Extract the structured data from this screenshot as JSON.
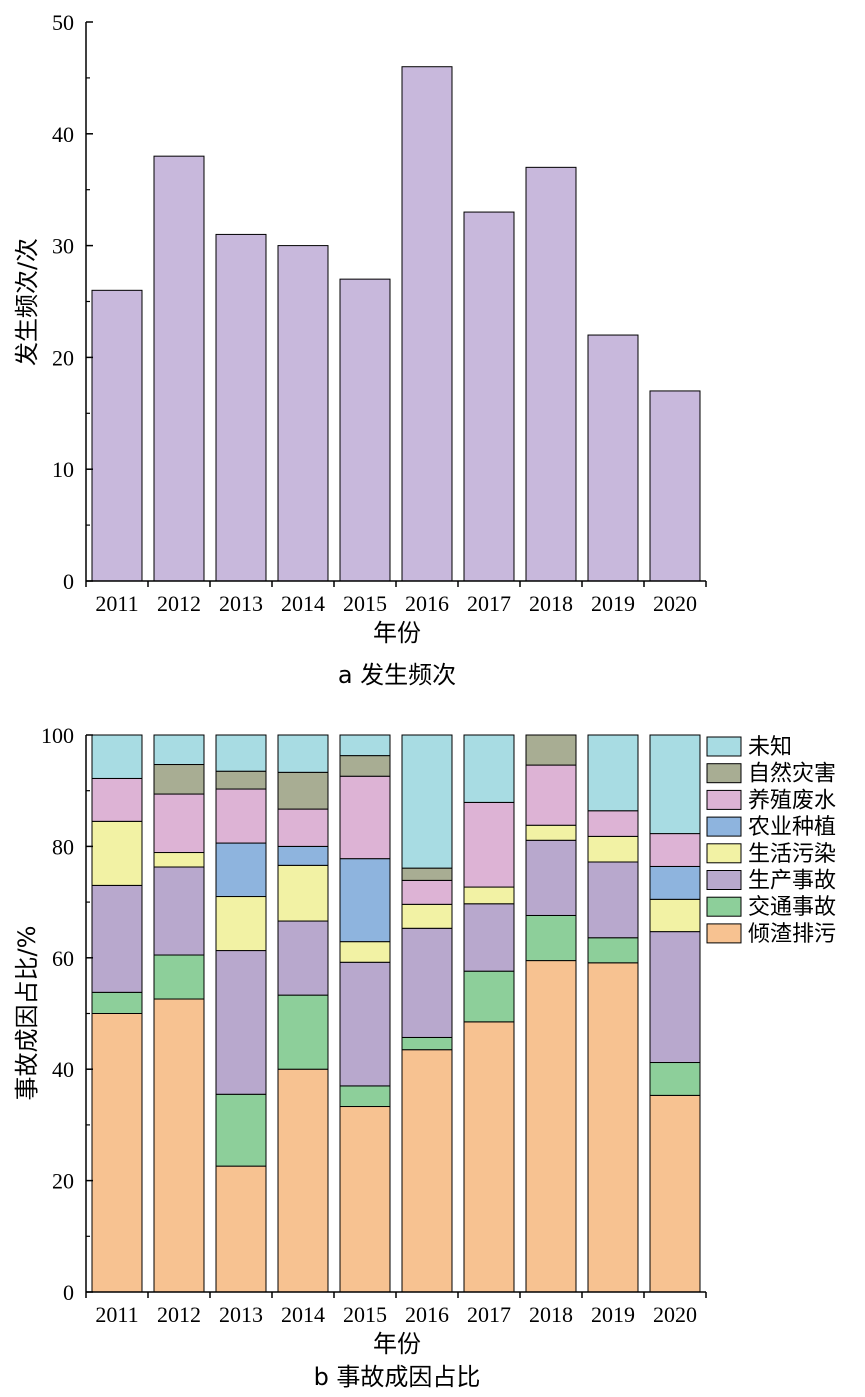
{
  "chart_data": [
    {
      "type": "bar",
      "caption": "a 发生频次",
      "xlabel": "年份",
      "ylabel": "发生频次/次",
      "ylim": [
        0,
        50
      ],
      "yticks": [
        "0",
        "10",
        "20",
        "30",
        "40",
        "50"
      ],
      "categories": [
        "2011",
        "2012",
        "2013",
        "2014",
        "2015",
        "2016",
        "2017",
        "2018",
        "2019",
        "2020"
      ],
      "values": [
        26,
        38,
        31,
        30,
        27,
        46,
        33,
        37,
        22,
        17
      ],
      "color": "#c8b8dc",
      "grid": false
    },
    {
      "type": "bar",
      "stacked": true,
      "caption": "b 事故成因占比",
      "xlabel": "年份",
      "ylabel": "事故成因占比/%",
      "ylim": [
        0,
        100
      ],
      "yticks": [
        "0",
        "20",
        "40",
        "60",
        "80",
        "100"
      ],
      "categories": [
        "2011",
        "2012",
        "2013",
        "2014",
        "2015",
        "2016",
        "2017",
        "2018",
        "2019",
        "2020"
      ],
      "legend_position": "right",
      "grid": false,
      "series": [
        {
          "name": "倾渣排污",
          "color": "#f7c291",
          "values": [
            50.0,
            52.6,
            22.6,
            40.0,
            33.3,
            43.5,
            48.5,
            59.5,
            59.1,
            35.3
          ]
        },
        {
          "name": "交通事故",
          "color": "#8dcf9a",
          "values": [
            3.8,
            7.9,
            12.9,
            13.3,
            3.7,
            2.2,
            9.1,
            8.1,
            4.5,
            5.9
          ]
        },
        {
          "name": "生产事故",
          "color": "#b8a8cd",
          "values": [
            19.2,
            15.8,
            25.8,
            13.3,
            22.2,
            19.6,
            12.1,
            13.5,
            13.6,
            23.5
          ]
        },
        {
          "name": "生活污染",
          "color": "#f2f2a4",
          "values": [
            11.5,
            2.6,
            9.7,
            10.0,
            3.7,
            4.3,
            3.0,
            2.7,
            4.6,
            5.8
          ]
        },
        {
          "name": "农业种植",
          "color": "#8eb4de",
          "values": [
            0,
            0,
            9.6,
            3.4,
            14.9,
            0,
            0,
            0,
            0,
            5.9
          ]
        },
        {
          "name": "养殖废水",
          "color": "#ddb3d5",
          "values": [
            7.7,
            10.5,
            9.7,
            6.7,
            14.8,
            4.3,
            15.2,
            10.8,
            4.6,
            5.9
          ]
        },
        {
          "name": "自然灾害",
          "color": "#a8ad93",
          "values": [
            0,
            5.3,
            3.2,
            6.6,
            3.7,
            2.2,
            0,
            5.4,
            0,
            0
          ]
        },
        {
          "name": "未知",
          "color": "#a8dce3",
          "values": [
            7.8,
            5.3,
            6.5,
            6.7,
            3.7,
            23.9,
            12.1,
            0,
            13.6,
            17.7
          ]
        }
      ]
    }
  ]
}
